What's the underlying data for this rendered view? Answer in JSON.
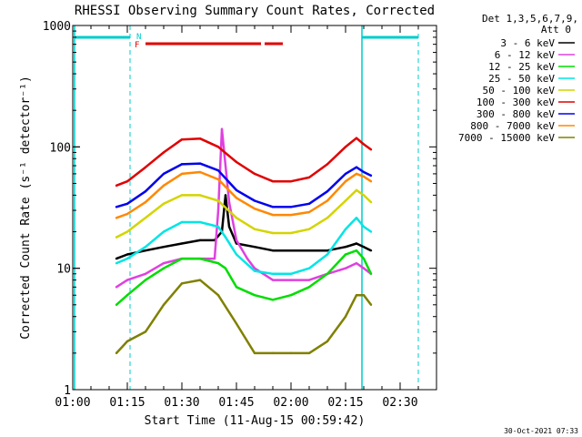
{
  "chart_data": {
    "type": "line",
    "title": "RHESSI Observing Summary Count Rates, Corrected",
    "xlabel": "Start Time (11-Aug-15 00:59:42)",
    "ylabel": "Corrected Count Rate (s⁻¹ detector⁻¹)",
    "yscale": "log",
    "ylim": [
      1,
      1000
    ],
    "xlim": [
      "01:00",
      "02:40"
    ],
    "x_ticks": [
      "01:00",
      "01:15",
      "01:30",
      "01:45",
      "02:00",
      "02:15",
      "02:30"
    ],
    "y_ticks": [
      "1",
      "10",
      "100",
      "1000"
    ],
    "grid": false,
    "legend_position": "right",
    "legend_header": [
      "Det 1,3,5,6,7,9,",
      "Att 0"
    ],
    "footer": "30-Oct-2021 07:33",
    "flag_labels": {
      "n": "N",
      "f": "F"
    },
    "series": [
      {
        "name": "3 - 6 keV",
        "color": "#000000",
        "x": [
          "01:12",
          "01:15",
          "01:20",
          "01:25",
          "01:30",
          "01:35",
          "01:39",
          "01:41",
          "01:42",
          "01:43",
          "01:45",
          "01:50",
          "01:55",
          "02:00",
          "02:05",
          "02:10",
          "02:15",
          "02:18",
          "02:20",
          "02:22"
        ],
        "y": [
          12,
          13,
          14,
          15,
          16,
          17,
          17,
          20,
          40,
          22,
          16,
          15,
          14,
          14,
          14,
          14,
          15,
          16,
          15,
          14
        ]
      },
      {
        "name": "6 - 12 keV",
        "color": "#e040e0",
        "x": [
          "01:12",
          "01:15",
          "01:20",
          "01:25",
          "01:30",
          "01:35",
          "01:39",
          "01:40",
          "01:41",
          "01:42",
          "01:43",
          "01:45",
          "01:48",
          "01:50",
          "01:55",
          "02:00",
          "02:05",
          "02:10",
          "02:15",
          "02:18",
          "02:20",
          "02:22"
        ],
        "y": [
          7,
          8,
          9,
          11,
          12,
          12,
          12,
          30,
          140,
          70,
          35,
          17,
          12,
          10,
          8,
          8,
          8,
          9,
          10,
          11,
          10,
          9
        ]
      },
      {
        "name": "12 - 25 keV",
        "color": "#00dd00",
        "x": [
          "01:12",
          "01:15",
          "01:20",
          "01:25",
          "01:30",
          "01:35",
          "01:40",
          "01:42",
          "01:45",
          "01:50",
          "01:55",
          "02:00",
          "02:05",
          "02:10",
          "02:15",
          "02:18",
          "02:20",
          "02:22"
        ],
        "y": [
          5,
          6,
          8,
          10,
          12,
          12,
          11,
          10,
          7,
          6,
          5.5,
          6,
          7,
          9,
          13,
          14,
          12,
          9
        ]
      },
      {
        "name": "25 - 50 keV",
        "color": "#00e5e5",
        "x": [
          "01:12",
          "01:15",
          "01:20",
          "01:25",
          "01:30",
          "01:35",
          "01:40",
          "01:42",
          "01:45",
          "01:50",
          "01:55",
          "02:00",
          "02:05",
          "02:10",
          "02:15",
          "02:18",
          "02:20",
          "02:22"
        ],
        "y": [
          11,
          12,
          15,
          20,
          24,
          24,
          22,
          18,
          13,
          9.5,
          9,
          9,
          10,
          13,
          21,
          26,
          22,
          20
        ]
      },
      {
        "name": "50 - 100 keV",
        "color": "#d4d400",
        "x": [
          "01:12",
          "01:15",
          "01:20",
          "01:25",
          "01:30",
          "01:35",
          "01:40",
          "01:45",
          "01:50",
          "01:55",
          "02:00",
          "02:05",
          "02:10",
          "02:15",
          "02:18",
          "02:20",
          "02:22"
        ],
        "y": [
          18,
          20,
          26,
          34,
          40,
          40,
          36,
          26,
          21,
          19.5,
          19.5,
          21,
          26,
          36,
          44,
          40,
          35
        ]
      },
      {
        "name": "100 - 300 keV",
        "color": "#e00000",
        "x": [
          "01:12",
          "01:15",
          "01:20",
          "01:25",
          "01:30",
          "01:35",
          "01:40",
          "01:45",
          "01:50",
          "01:55",
          "02:00",
          "02:05",
          "02:10",
          "02:15",
          "02:18",
          "02:20",
          "02:22"
        ],
        "y": [
          48,
          52,
          68,
          90,
          115,
          117,
          100,
          75,
          60,
          52,
          52,
          56,
          72,
          100,
          118,
          105,
          95
        ]
      },
      {
        "name": "300 - 800 keV",
        "color": "#0000ee",
        "x": [
          "01:12",
          "01:15",
          "01:20",
          "01:25",
          "01:30",
          "01:35",
          "01:40",
          "01:45",
          "01:50",
          "01:55",
          "02:00",
          "02:05",
          "02:10",
          "02:15",
          "02:18",
          "02:20",
          "02:22"
        ],
        "y": [
          32,
          34,
          43,
          60,
          72,
          73,
          64,
          44,
          36,
          32,
          32,
          34,
          43,
          60,
          68,
          62,
          58
        ]
      },
      {
        "name": "800 - 7000 keV",
        "color": "#ff8800",
        "x": [
          "01:12",
          "01:15",
          "01:20",
          "01:25",
          "01:30",
          "01:35",
          "01:40",
          "01:45",
          "01:50",
          "01:55",
          "02:00",
          "02:05",
          "02:10",
          "02:15",
          "02:18",
          "02:20",
          "02:22"
        ],
        "y": [
          26,
          28,
          35,
          48,
          60,
          62,
          54,
          38,
          31,
          27.5,
          27.5,
          29,
          36,
          52,
          60,
          57,
          52
        ]
      },
      {
        "name": "7000 - 15000 keV",
        "color": "#808000",
        "x": [
          "01:12",
          "01:15",
          "01:20",
          "01:25",
          "01:30",
          "01:35",
          "01:40",
          "01:45",
          "01:50",
          "01:55",
          "02:00",
          "02:05",
          "02:10",
          "02:15",
          "02:18",
          "02:20",
          "02:22"
        ],
        "y": [
          2,
          2.5,
          3,
          5,
          7.5,
          8,
          6,
          3.5,
          2,
          2,
          2,
          2,
          2.5,
          4,
          6,
          6,
          5
        ]
      }
    ]
  }
}
